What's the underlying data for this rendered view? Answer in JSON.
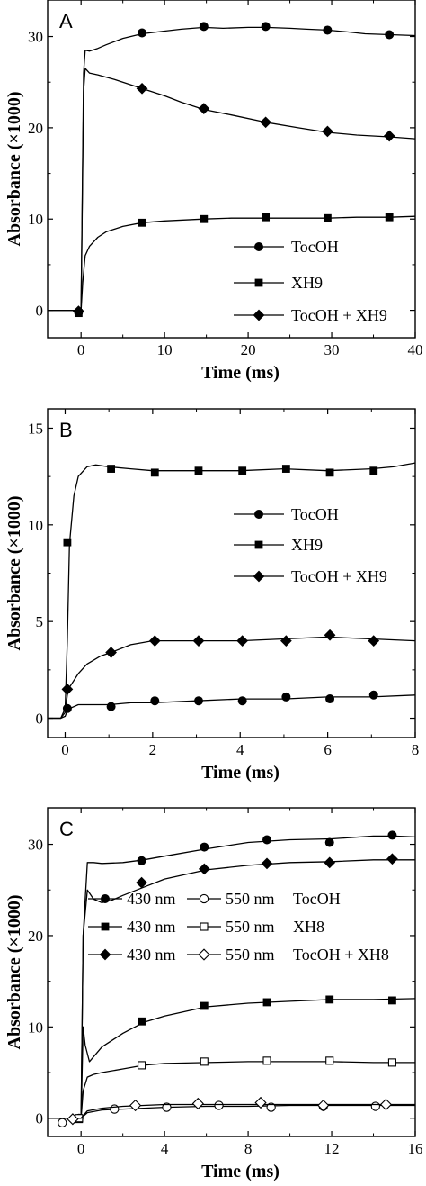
{
  "chart_data": [
    {
      "panel": "A",
      "type": "line",
      "xlabel": "Time (ms)",
      "ylabel": "Absorbance (×1000)",
      "xlim": [
        -4,
        40
      ],
      "ylim": [
        -3,
        34
      ],
      "xticks": [
        0,
        10,
        20,
        30,
        40
      ],
      "xtick_labels": [
        "0",
        "10",
        "20",
        "30",
        "40"
      ],
      "yticks": [
        0,
        10,
        20,
        30
      ],
      "ytick_labels": [
        "0",
        "10",
        "20",
        "30"
      ],
      "legend_position": "bottom-right",
      "series": [
        {
          "name": "TocOH",
          "marker": "filled-circle",
          "x": [
            -4,
            -0.3,
            0,
            0.3,
            0.5,
            1,
            2,
            3,
            5,
            7.3,
            10,
            12,
            14.7,
            17,
            20,
            22.1,
            25,
            27,
            29.5,
            32,
            34,
            37,
            40
          ],
          "y": [
            0,
            0,
            0,
            26,
            28.5,
            28.4,
            28.7,
            29.1,
            29.8,
            30.3,
            30.6,
            30.8,
            31,
            30.9,
            31,
            31,
            30.9,
            30.8,
            30.7,
            30.5,
            30.3,
            30.2,
            30.1
          ],
          "marker_x": [
            -0.3,
            7.3,
            14.7,
            22.1,
            29.5,
            36.9
          ],
          "marker_y": [
            -0.2,
            30.4,
            31.1,
            31.1,
            30.7,
            30.2
          ]
        },
        {
          "name": "XH9",
          "marker": "filled-square",
          "x": [
            -4,
            -0.3,
            0,
            0.2,
            0.5,
            1,
            2,
            3,
            5,
            7.3,
            10,
            14.7,
            18,
            22.1,
            26,
            29.5,
            33,
            36.9,
            40
          ],
          "y": [
            0,
            0,
            0,
            3,
            6,
            7,
            8,
            8.6,
            9.2,
            9.6,
            9.8,
            10,
            10.1,
            10.1,
            10.1,
            10.1,
            10.2,
            10.2,
            10.3
          ],
          "marker_x": [
            -0.3,
            7.3,
            14.7,
            22.1,
            29.5,
            36.9
          ],
          "marker_y": [
            -0.3,
            9.6,
            10,
            10.2,
            10.1,
            10.2
          ]
        },
        {
          "name": "TocOH + XH9",
          "marker": "filled-diamond",
          "x": [
            -4,
            -0.3,
            0,
            0.3,
            0.5,
            1,
            2,
            4,
            7.3,
            10,
            12,
            14.7,
            18,
            22.1,
            26,
            29.5,
            33,
            36.9,
            40
          ],
          "y": [
            0,
            0,
            0,
            24,
            26.5,
            26,
            25.8,
            25.3,
            24.3,
            23.5,
            22.8,
            22,
            21.4,
            20.6,
            20,
            19.5,
            19.2,
            19,
            18.8
          ],
          "marker_x": [
            -0.3,
            7.3,
            14.7,
            22.1,
            29.5,
            36.9
          ],
          "marker_y": [
            -0.1,
            24.3,
            22.1,
            20.6,
            19.6,
            19.1
          ]
        }
      ]
    },
    {
      "panel": "B",
      "type": "line",
      "xlabel": "Time (ms)",
      "ylabel": "Absorbance (×1000)",
      "xlim": [
        -0.4,
        8
      ],
      "ylim": [
        -1,
        16
      ],
      "xticks": [
        0,
        2,
        4,
        6,
        8
      ],
      "xtick_labels": [
        "0",
        "2",
        "4",
        "6",
        "8"
      ],
      "yticks": [
        0,
        5,
        10,
        15
      ],
      "ytick_labels": [
        "0",
        "5",
        "10",
        "15"
      ],
      "legend_position": "right",
      "series": [
        {
          "name": "TocOH",
          "marker": "filled-circle",
          "x": [
            -0.4,
            -0.1,
            0,
            0.05,
            0.1,
            0.3,
            0.6,
            1,
            1.5,
            2,
            3,
            4,
            5,
            6,
            7,
            8
          ],
          "y": [
            0,
            0,
            0.1,
            0.4,
            0.5,
            0.7,
            0.7,
            0.7,
            0.8,
            0.8,
            0.9,
            1,
            1,
            1.1,
            1.1,
            1.2
          ],
          "marker_x": [
            0.05,
            1.05,
            2.05,
            3.05,
            4.05,
            5.05,
            6.05,
            7.05
          ],
          "marker_y": [
            0.5,
            0.6,
            0.9,
            0.9,
            0.9,
            1.1,
            1,
            1.2
          ]
        },
        {
          "name": "XH9",
          "marker": "filled-square",
          "x": [
            -0.4,
            -0.1,
            0,
            0.05,
            0.1,
            0.2,
            0.3,
            0.5,
            0.7,
            1,
            1.5,
            2,
            3,
            4,
            5,
            6,
            7,
            7.5,
            8
          ],
          "y": [
            0,
            0,
            0.5,
            4,
            9,
            11.5,
            12.5,
            13,
            13.1,
            13,
            12.9,
            12.8,
            12.8,
            12.8,
            12.9,
            12.8,
            12.9,
            13,
            13.2
          ],
          "marker_x": [
            0.05,
            1.05,
            2.05,
            3.05,
            4.05,
            5.05,
            6.05,
            7.05
          ],
          "marker_y": [
            9.1,
            12.9,
            12.7,
            12.8,
            12.8,
            12.9,
            12.7,
            12.8
          ]
        },
        {
          "name": "TocOH + XH9",
          "marker": "filled-diamond",
          "x": [
            -0.4,
            -0.1,
            0,
            0.05,
            0.1,
            0.3,
            0.5,
            0.8,
            1.05,
            1.5,
            2,
            3,
            4,
            5,
            6,
            7,
            8
          ],
          "y": [
            0,
            0,
            0.3,
            1.2,
            1.6,
            2.3,
            2.8,
            3.2,
            3.4,
            3.8,
            4,
            4,
            4,
            4.1,
            4.2,
            4.1,
            4
          ],
          "marker_x": [
            0.05,
            1.05,
            2.05,
            3.05,
            4.05,
            5.05,
            6.05,
            7.05
          ],
          "marker_y": [
            1.5,
            3.4,
            4,
            4,
            4,
            4,
            4.3,
            4
          ]
        }
      ]
    },
    {
      "panel": "C",
      "type": "line",
      "xlabel": "Time (ms)",
      "ylabel": "Absorbance (×1000)",
      "xlim": [
        -1.6,
        16
      ],
      "ylim": [
        -2,
        34
      ],
      "xticks": [
        0,
        4,
        8,
        12,
        16
      ],
      "xtick_labels": [
        "0",
        "4",
        "8",
        "12",
        "16"
      ],
      "yticks": [
        0,
        10,
        20,
        30
      ],
      "ytick_labels": [
        "0",
        "10",
        "20",
        "30"
      ],
      "legend_position": "center",
      "legend_rows": [
        {
          "label_a": "430 nm",
          "marker_a": "filled-circle",
          "label_b": "550 nm",
          "marker_b": "open-circle",
          "name": "TocOH"
        },
        {
          "label_a": "430 nm",
          "marker_a": "filled-square",
          "label_b": "550 nm",
          "marker_b": "open-square",
          "name": "XH8"
        },
        {
          "label_a": "430 nm",
          "marker_a": "filled-diamond",
          "label_b": "550 nm",
          "marker_b": "open-diamond",
          "name": "TocOH + XH8"
        }
      ],
      "series": [
        {
          "name": "TocOH 430 nm",
          "marker": "filled-circle",
          "x": [
            -1.6,
            -0.2,
            0,
            0.1,
            0.3,
            0.6,
            1,
            2,
            3,
            4,
            6,
            8,
            10,
            12,
            14,
            15,
            16
          ],
          "y": [
            0,
            0,
            0,
            20,
            28,
            28,
            27.9,
            28,
            28.3,
            28.7,
            29.5,
            30.2,
            30.5,
            30.6,
            30.9,
            30.9,
            30.8
          ],
          "marker_x": [
            -0.1,
            2.9,
            5.9,
            8.9,
            11.9,
            14.9
          ],
          "marker_y": [
            0,
            28.2,
            29.7,
            30.5,
            30.2,
            31
          ]
        },
        {
          "name": "TocOH + XH8 430 nm",
          "marker": "filled-diamond",
          "x": [
            -1.6,
            -0.2,
            0,
            0.1,
            0.3,
            0.6,
            1,
            1.5,
            2,
            3,
            4,
            6,
            8,
            10,
            12,
            14,
            16
          ],
          "y": [
            0,
            0,
            0,
            20,
            25,
            24,
            23.6,
            23.9,
            24.4,
            25.3,
            26.2,
            27.2,
            27.7,
            28,
            28.1,
            28.3,
            28.3
          ],
          "marker_x": [
            2.9,
            5.9,
            8.9,
            11.9,
            14.9
          ],
          "marker_y": [
            25.8,
            27.3,
            27.9,
            28,
            28.4
          ]
        },
        {
          "name": "XH8 430 nm",
          "marker": "filled-square",
          "x": [
            -1.6,
            -0.2,
            0,
            0.1,
            0.2,
            0.4,
            0.7,
            1,
            2,
            3,
            4,
            6,
            8,
            10,
            12,
            14,
            16
          ],
          "y": [
            0,
            0,
            0,
            10,
            8,
            6.2,
            7,
            7.8,
            9.3,
            10.5,
            11.2,
            12.2,
            12.6,
            12.8,
            13,
            13,
            13.1
          ],
          "marker_x": [
            -0.1,
            2.9,
            5.9,
            8.9,
            11.9,
            14.9
          ],
          "marker_y": [
            -0.1,
            10.6,
            12.3,
            12.7,
            13,
            12.9
          ]
        },
        {
          "name": "XH8 550 nm",
          "marker": "open-square",
          "x": [
            -1.6,
            -0.2,
            0,
            0.1,
            0.3,
            0.6,
            1,
            2,
            3,
            4,
            6,
            8,
            10,
            12,
            14,
            16
          ],
          "y": [
            0,
            0,
            0,
            3,
            4.5,
            4.8,
            5,
            5.4,
            5.8,
            6,
            6.1,
            6.2,
            6.2,
            6.2,
            6.1,
            6.1
          ],
          "marker_x": [
            -0.1,
            2.9,
            5.9,
            8.9,
            11.9,
            14.9
          ],
          "marker_y": [
            0,
            5.8,
            6.2,
            6.3,
            6.3,
            6.1
          ]
        },
        {
          "name": "TocOH 550 nm",
          "marker": "open-circle",
          "x": [
            -1.6,
            -0.2,
            0,
            0.3,
            1,
            2,
            4,
            6,
            8,
            10,
            12,
            14,
            16
          ],
          "y": [
            0,
            0,
            0,
            0.6,
            0.9,
            1,
            1.2,
            1.3,
            1.3,
            1.4,
            1.4,
            1.4,
            1.4
          ],
          "marker_x": [
            -0.9,
            1.6,
            4.1,
            6.6,
            9.1,
            11.6,
            14.1
          ],
          "marker_y": [
            -0.5,
            1,
            1.2,
            1.4,
            1.2,
            1.3,
            1.3
          ]
        },
        {
          "name": "TocOH + XH8 550 nm",
          "marker": "open-diamond",
          "x": [
            -1.6,
            -0.2,
            0,
            0.3,
            1,
            2,
            4,
            6,
            8,
            10,
            12,
            14,
            16
          ],
          "y": [
            0,
            0,
            0,
            0.8,
            1.1,
            1.3,
            1.5,
            1.5,
            1.5,
            1.5,
            1.5,
            1.5,
            1.5
          ],
          "marker_x": [
            -0.4,
            2.6,
            5.6,
            8.6,
            11.6,
            14.6
          ],
          "marker_y": [
            -0.1,
            1.4,
            1.6,
            1.7,
            1.4,
            1.5
          ]
        }
      ]
    }
  ]
}
